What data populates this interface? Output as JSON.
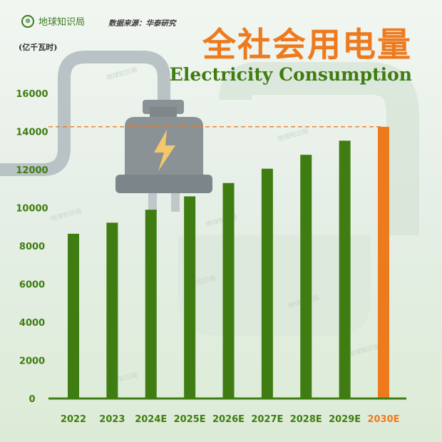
{
  "brand": {
    "logo_icon": "globe-logo-icon",
    "name": "地球知识局"
  },
  "source": "数据来源：华泰研究",
  "unit": "(亿千瓦时)",
  "watermark": "地球知识局",
  "colors": {
    "bar": "#3f7d12",
    "highlight": "#ee7a1e",
    "axis_text": "#3f7d12",
    "plug": "#8a9296",
    "cable": "#b9c3c6"
  },
  "chart_data": {
    "type": "bar",
    "title": "全社会用电量",
    "subtitle": "Electricity Consumption",
    "ylabel": "(亿千瓦时)",
    "xlabel": "",
    "categories": [
      "2022",
      "2023",
      "2024E",
      "2025E",
      "2026E",
      "2027E",
      "2028E",
      "2029E",
      "2030E"
    ],
    "values": [
      8640,
      9220,
      9900,
      10600,
      11300,
      12050,
      12780,
      13520,
      14250
    ],
    "highlight_index": 8,
    "ylim": [
      0,
      16000
    ],
    "yticks": [
      "0",
      "2000",
      "4000",
      "6000",
      "8000",
      "10000",
      "12000",
      "14000",
      "16000"
    ],
    "grid": false,
    "reference_line": {
      "value": 14250,
      "style": "dashed"
    }
  }
}
